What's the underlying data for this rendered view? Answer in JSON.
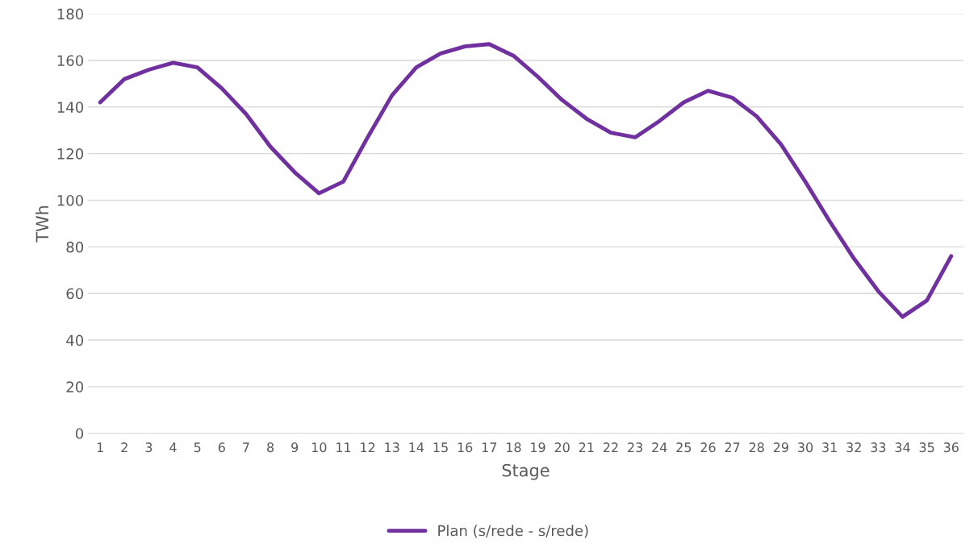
{
  "chart_data": {
    "type": "line",
    "xlabel": "Stage",
    "ylabel": "TWh",
    "categories": [
      "1",
      "2",
      "3",
      "4",
      "5",
      "6",
      "7",
      "8",
      "9",
      "10",
      "11",
      "12",
      "13",
      "14",
      "15",
      "16",
      "17",
      "18",
      "19",
      "20",
      "21",
      "22",
      "23",
      "24",
      "25",
      "26",
      "27",
      "28",
      "29",
      "30",
      "31",
      "32",
      "33",
      "34",
      "35",
      "36"
    ],
    "series": [
      {
        "name": "Plan (s/rede - s/rede)",
        "color": "#7030a0",
        "values": [
          142,
          152,
          156,
          159,
          157,
          148,
          137,
          123,
          112,
          103,
          108,
          127,
          145,
          157,
          163,
          166,
          167,
          162,
          153,
          143,
          135,
          129,
          127,
          134,
          142,
          147,
          144,
          136,
          124,
          108,
          91,
          75,
          61,
          50,
          57,
          76
        ]
      }
    ],
    "ylim": [
      0,
      180
    ],
    "yticks": [
      0,
      20,
      40,
      60,
      80,
      100,
      120,
      140,
      160,
      180
    ],
    "grid": "y",
    "legend": "bottom",
    "marker": "none",
    "line_style": "solid"
  }
}
